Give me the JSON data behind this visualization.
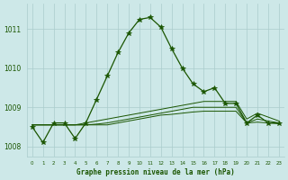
{
  "hours": [
    0,
    1,
    2,
    3,
    4,
    5,
    6,
    7,
    8,
    9,
    10,
    11,
    12,
    13,
    14,
    15,
    16,
    17,
    18,
    19,
    20,
    21,
    22,
    23
  ],
  "main_line": [
    1008.5,
    1008.1,
    1008.6,
    1008.6,
    1008.2,
    1008.6,
    1009.2,
    1009.8,
    1010.4,
    1010.9,
    1011.25,
    1011.3,
    1011.05,
    1010.5,
    1010.0,
    1009.6,
    1009.4,
    1009.5,
    1009.1,
    1009.1,
    1008.6,
    1008.8,
    1008.6,
    1008.6
  ],
  "flat_line1": [
    1008.55,
    1008.55,
    1008.55,
    1008.55,
    1008.55,
    1008.6,
    1008.65,
    1008.7,
    1008.75,
    1008.8,
    1008.85,
    1008.9,
    1008.95,
    1009.0,
    1009.05,
    1009.1,
    1009.15,
    1009.15,
    1009.15,
    1009.15,
    1008.7,
    1008.85,
    1008.75,
    1008.65
  ],
  "flat_line2": [
    1008.55,
    1008.55,
    1008.55,
    1008.55,
    1008.55,
    1008.55,
    1008.57,
    1008.6,
    1008.65,
    1008.7,
    1008.75,
    1008.8,
    1008.85,
    1008.9,
    1008.95,
    1009.0,
    1009.0,
    1009.0,
    1009.0,
    1009.0,
    1008.6,
    1008.7,
    1008.65,
    1008.6
  ],
  "flat_line3": [
    1008.55,
    1008.55,
    1008.55,
    1008.55,
    1008.55,
    1008.55,
    1008.55,
    1008.55,
    1008.6,
    1008.65,
    1008.7,
    1008.75,
    1008.8,
    1008.82,
    1008.85,
    1008.88,
    1008.9,
    1008.9,
    1008.9,
    1008.9,
    1008.6,
    1008.62,
    1008.6,
    1008.58
  ],
  "bg_color": "#cde8e8",
  "line_color": "#1a5500",
  "grid_color": "#aacccc",
  "ylim": [
    1007.75,
    1011.65
  ],
  "yticks": [
    1008,
    1009,
    1010,
    1011
  ],
  "xlabel": "Graphe pression niveau de la mer (hPa)",
  "marker": "*",
  "marker_size": 4
}
